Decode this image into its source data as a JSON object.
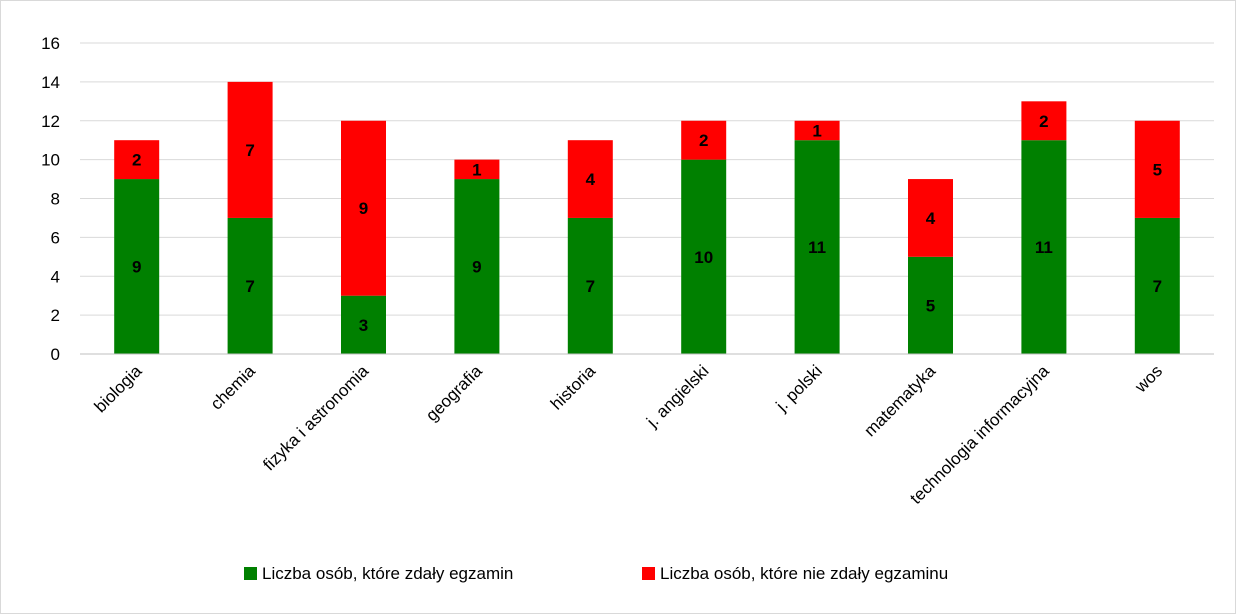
{
  "chart_data": {
    "type": "bar",
    "stacked": true,
    "categories": [
      "biologia",
      "chemia",
      "fizyka i astronomia",
      "geografia",
      "historia",
      "j. angielski",
      "j. polski",
      "matematyka",
      "technologia informacyjna",
      "wos"
    ],
    "series": [
      {
        "name": "Liczba osób, które zdały egzamin",
        "color": "#008000",
        "values": [
          9,
          7,
          3,
          9,
          7,
          10,
          11,
          5,
          11,
          7
        ]
      },
      {
        "name": "Liczba osób, które nie zdały egzaminu",
        "color": "#ff0000",
        "values": [
          2,
          7,
          9,
          1,
          4,
          2,
          1,
          4,
          2,
          5
        ]
      }
    ],
    "ylim": [
      0,
      16
    ],
    "yticks": [
      "0",
      "2",
      "4",
      "6",
      "8",
      "10",
      "12",
      "14",
      "16"
    ],
    "grid": true,
    "legend_position": "bottom"
  }
}
